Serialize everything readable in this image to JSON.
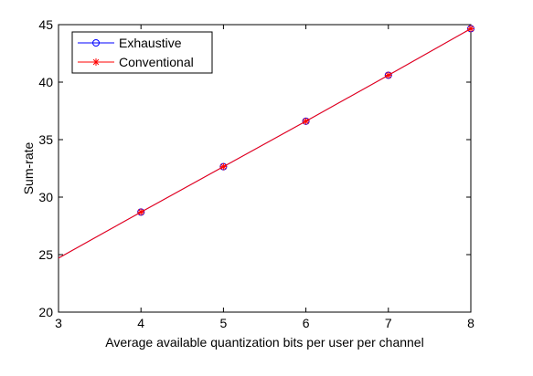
{
  "chart_data": {
    "type": "line",
    "xlabel": "Average available quantization bits per user per channel",
    "ylabel": "Sum-rate",
    "xlim": [
      3,
      8
    ],
    "ylim": [
      20,
      45
    ],
    "x_ticks": [
      "3",
      "4",
      "5",
      "6",
      "7",
      "8"
    ],
    "y_ticks": [
      "20",
      "25",
      "30",
      "35",
      "40",
      "45"
    ],
    "grid": false,
    "legend_position": "top-left",
    "series": [
      {
        "name": "Exhaustive",
        "color": "#0000ff",
        "marker": "circle",
        "x": [
          3,
          4,
          5,
          6,
          7,
          8
        ],
        "y": [
          24.7,
          28.7,
          32.65,
          36.6,
          40.6,
          44.65
        ]
      },
      {
        "name": "Conventional",
        "color": "#ff0000",
        "marker": "asterisk",
        "x": [
          3,
          4,
          5,
          6,
          7,
          8
        ],
        "y": [
          24.7,
          28.7,
          32.65,
          36.6,
          40.6,
          44.65
        ]
      }
    ]
  }
}
